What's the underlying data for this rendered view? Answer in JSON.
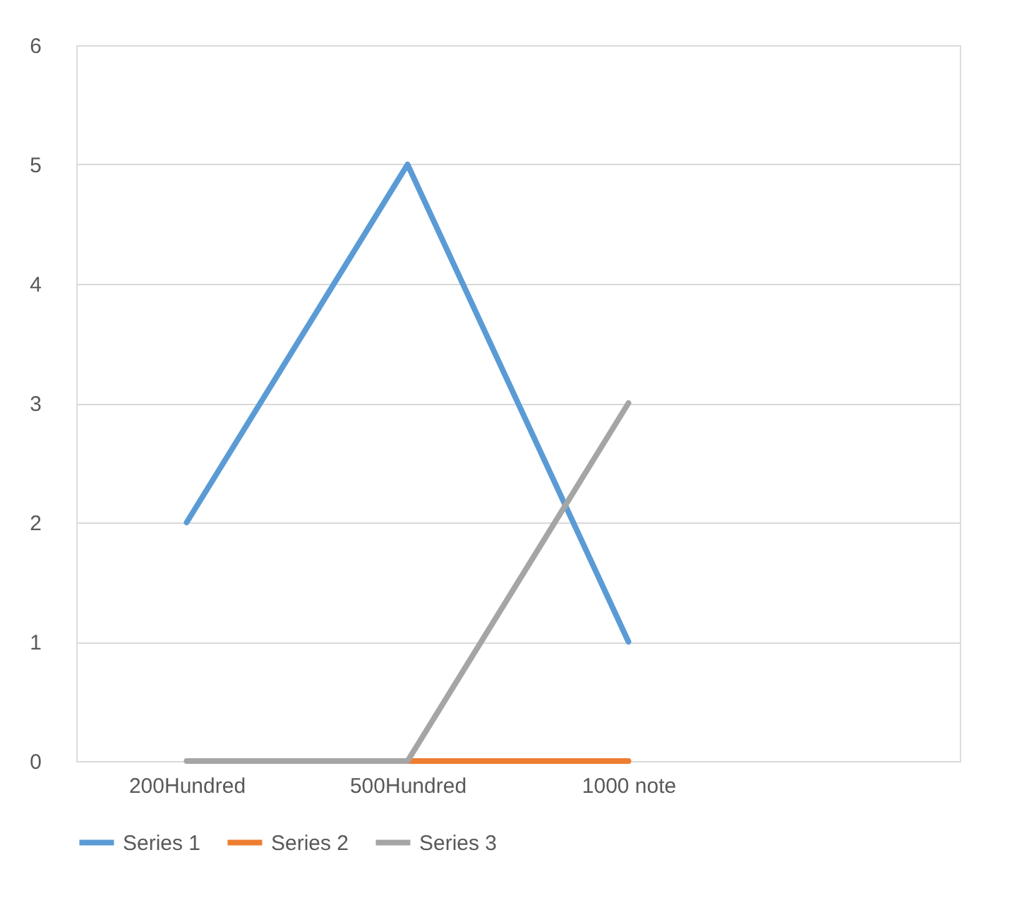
{
  "chart_data": {
    "type": "line",
    "categories": [
      "200Hundred",
      "500Hundred",
      "1000 note",
      null
    ],
    "series": [
      {
        "name": "Series 1",
        "color": "#5b9bd5",
        "values": [
          2,
          5,
          1,
          null
        ]
      },
      {
        "name": "Series 2",
        "color": "#ed7d31",
        "values": [
          null,
          0,
          0,
          null
        ]
      },
      {
        "name": "Series 3",
        "color": "#a5a5a5",
        "values": [
          0,
          0,
          3,
          null
        ]
      }
    ],
    "ylim": [
      0,
      6
    ],
    "yticks": [
      0,
      1,
      2,
      3,
      4,
      5,
      6
    ],
    "grid": "y",
    "legend": "bottom",
    "marker": "none",
    "line_style": "solid"
  }
}
